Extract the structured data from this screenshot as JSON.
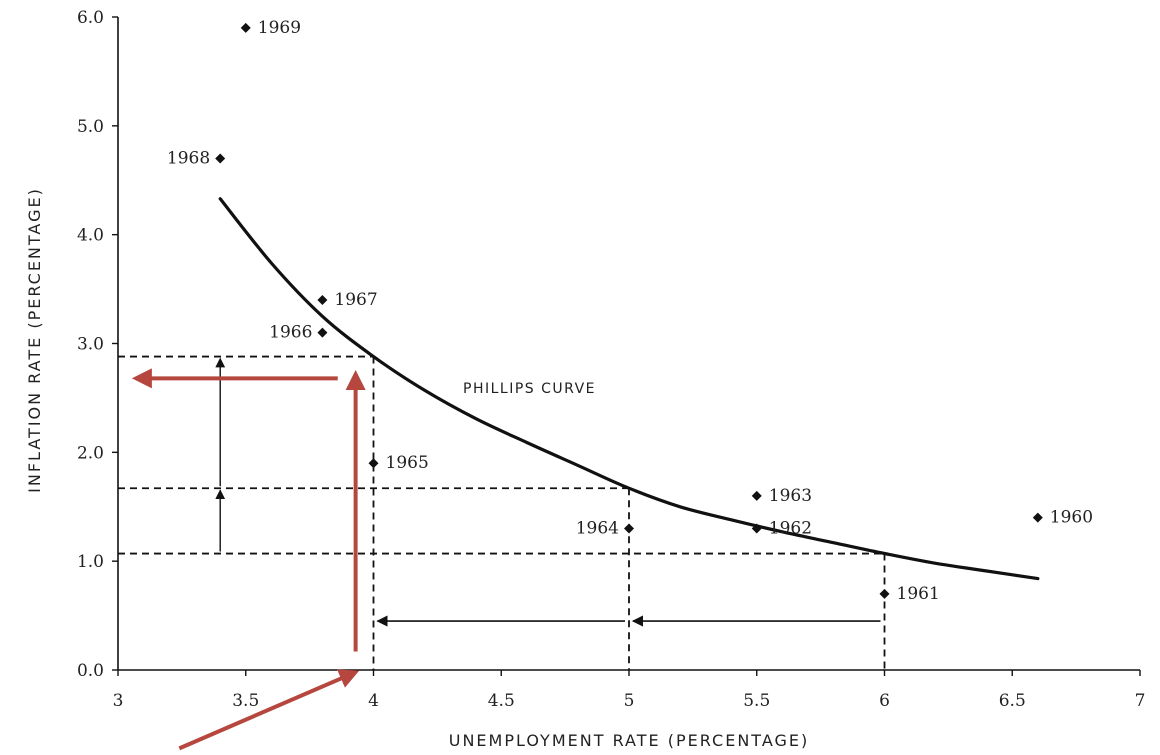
{
  "chart_data": {
    "type": "scatter",
    "xlabel": "UNEMPLOYMENT RATE (PERCENTAGE)",
    "ylabel": "INFLATION RATE (PERCENTAGE)",
    "xlim": [
      3,
      7
    ],
    "ylim": [
      0,
      6
    ],
    "x_ticks": [
      3,
      3.5,
      4,
      4.5,
      5,
      5.5,
      6,
      6.5,
      7
    ],
    "x_tick_labels": [
      "3",
      "3.5",
      "4",
      "4.5",
      "5",
      "5.5",
      "6",
      "6.5",
      "7"
    ],
    "y_ticks": [
      0,
      1,
      2,
      3,
      4,
      5,
      6
    ],
    "y_tick_labels": [
      "0.0",
      "1.0",
      "2.0",
      "3.0",
      "4.0",
      "5.0",
      "6.0"
    ],
    "points": [
      {
        "label": "1960",
        "x": 6.6,
        "y": 1.4
      },
      {
        "label": "1961",
        "x": 6.0,
        "y": 0.7
      },
      {
        "label": "1962",
        "x": 5.5,
        "y": 1.3
      },
      {
        "label": "1963",
        "x": 5.5,
        "y": 1.6
      },
      {
        "label": "1964",
        "x": 5.0,
        "y": 1.3
      },
      {
        "label": "1965",
        "x": 4.0,
        "y": 1.9
      },
      {
        "label": "1966",
        "x": 3.8,
        "y": 3.1
      },
      {
        "label": "1967",
        "x": 3.8,
        "y": 3.4
      },
      {
        "label": "1968",
        "x": 3.4,
        "y": 4.7
      },
      {
        "label": "1969",
        "x": 3.5,
        "y": 5.9
      }
    ],
    "curve": {
      "label": "PHILLIPS CURVE",
      "x": [
        3.4,
        3.6,
        3.8,
        4.0,
        4.2,
        4.4,
        4.6,
        4.8,
        5.0,
        5.2,
        5.4,
        5.6,
        5.8,
        6.0,
        6.2,
        6.4,
        6.6
      ],
      "y": [
        4.33,
        3.74,
        3.25,
        2.88,
        2.57,
        2.31,
        2.09,
        1.88,
        1.67,
        1.5,
        1.38,
        1.27,
        1.17,
        1.07,
        0.98,
        0.91,
        0.84
      ]
    },
    "guides": {
      "vertical": [
        {
          "x": 4,
          "y_top": 2.88
        },
        {
          "x": 5,
          "y_top": 1.67
        },
        {
          "x": 6,
          "y_top": 1.07
        }
      ],
      "horizontal": [
        {
          "y": 2.88,
          "x_right": 4
        },
        {
          "y": 1.67,
          "x_right": 5
        },
        {
          "y": 1.07,
          "x_right": 6
        }
      ],
      "arrows_left": [
        {
          "y": 0.45,
          "x_from": 5.0,
          "x_to": 4.0
        },
        {
          "y": 0.45,
          "x_from": 6.0,
          "x_to": 5.0
        }
      ],
      "arrows_up": [
        {
          "x": 3.4,
          "y_from": 1.07,
          "y_to": 1.67
        },
        {
          "x": 3.4,
          "y_from": 1.67,
          "y_to": 2.88
        }
      ]
    },
    "annotations": {
      "color": "#b5473f",
      "arrows": [
        {
          "x1": 3.93,
          "y1": 0.17,
          "x2": 3.93,
          "y2": 2.72
        },
        {
          "x1": 3.86,
          "y1": 2.68,
          "x2": 3.07,
          "y2": 2.68
        },
        {
          "x1": 3.24,
          "y1": -0.72,
          "x2": 3.93,
          "y2": -0.02
        }
      ]
    }
  }
}
